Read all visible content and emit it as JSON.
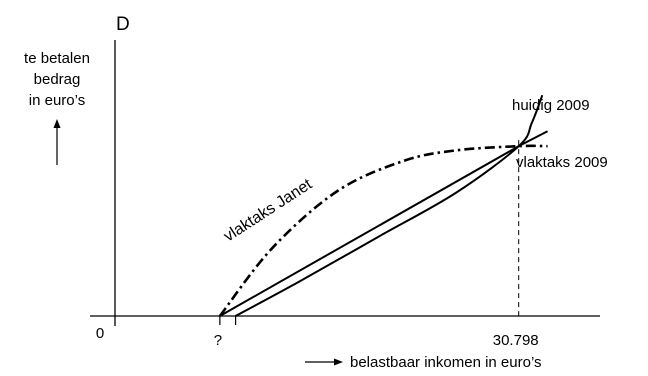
{
  "chart_data": {
    "type": "line",
    "panel_label": "D",
    "ylabel": [
      "te betalen",
      "bedrag",
      "in euro’s"
    ],
    "xlabel": "belastbaar inkomen in euro’s",
    "x_ticks": [
      {
        "label": "0",
        "value": 0
      },
      {
        "label": "?",
        "value": 8000
      },
      {
        "label": "30.798",
        "value": 30798
      }
    ],
    "series": [
      {
        "name": "vlaktaks Janet",
        "style": "dash-dot",
        "points": [
          [
            8000,
            0
          ],
          [
            12000,
            3.2
          ],
          [
            17000,
            5.9
          ],
          [
            22000,
            7.3
          ],
          [
            26000,
            7.8
          ],
          [
            30798,
            8.0
          ],
          [
            33000,
            8.0
          ]
        ]
      },
      {
        "name": "vlaktaks 2009",
        "style": "solid",
        "points": [
          [
            8000,
            0
          ],
          [
            30798,
            8.0
          ],
          [
            33000,
            8.7
          ]
        ]
      },
      {
        "name": "huidig 2009",
        "style": "solid",
        "points": [
          [
            9200,
            0
          ],
          [
            14000,
            1.6
          ],
          [
            20000,
            3.7
          ],
          [
            26000,
            5.8
          ],
          [
            30798,
            8.0
          ],
          [
            31800,
            9.1
          ],
          [
            32600,
            10.4
          ]
        ]
      }
    ],
    "annotations": [
      {
        "type": "vline",
        "x": 30798,
        "style": "dashed"
      }
    ],
    "xlim": [
      0,
      37000
    ],
    "ylim": [
      0,
      13
    ],
    "grid": false
  }
}
